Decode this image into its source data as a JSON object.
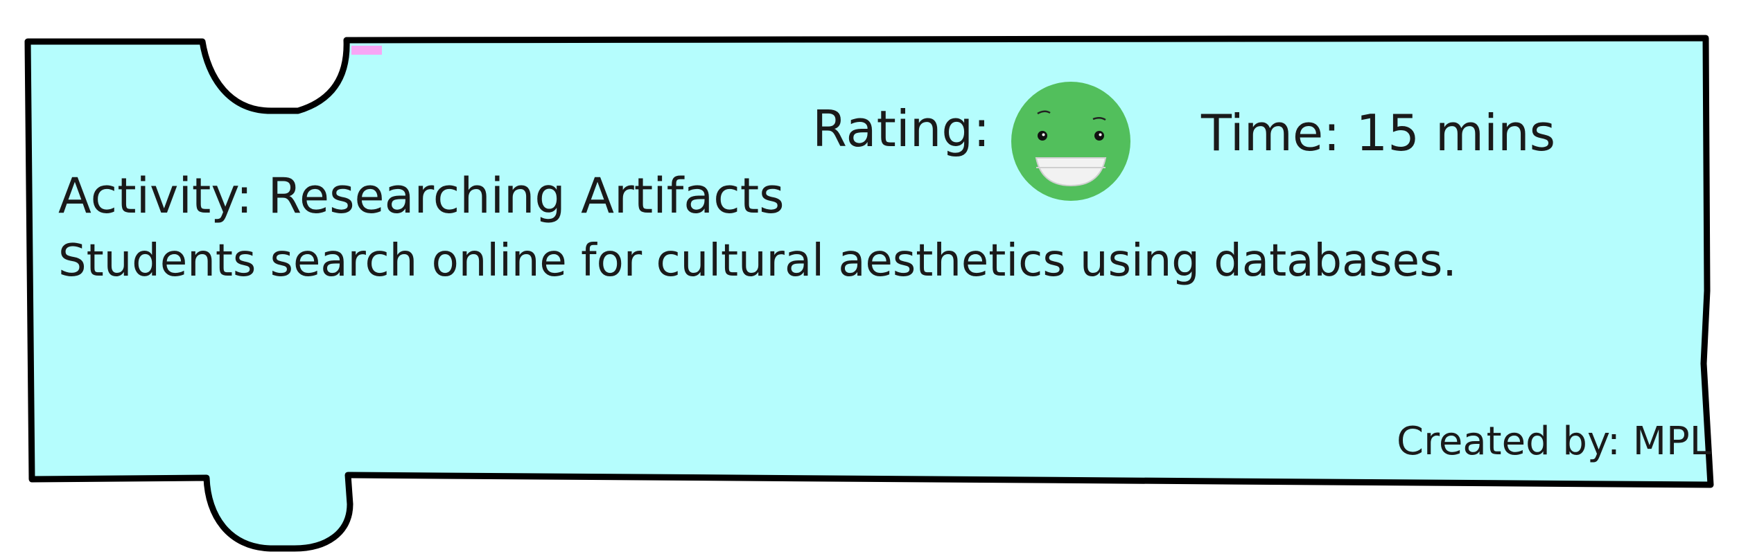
{
  "card": {
    "background_color": "#b5fdfd",
    "border_color": "#000000",
    "accent_tab_color": "#f7a6f5"
  },
  "rating": {
    "label": "Rating:",
    "icon": "happy-face-icon",
    "icon_color": "#52bf5c"
  },
  "time": {
    "label": "Time: 15 mins"
  },
  "activity": {
    "title": "Activity: Researching Artifacts",
    "description": "Students search online for cultural aesthetics using databases."
  },
  "footer": {
    "created_by": "Created by: MPL"
  }
}
